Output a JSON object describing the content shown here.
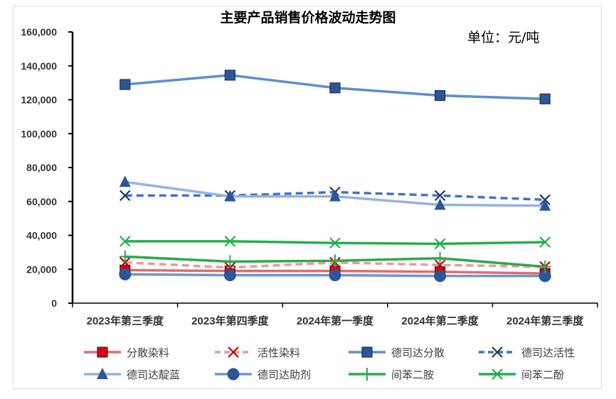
{
  "chart_data": {
    "type": "line",
    "title": "主要产品销售价格波动走势图",
    "unit_label": "单位：元/吨",
    "categories": [
      "2023年第三季度",
      "2023年第四季度",
      "2024年第一季度",
      "2024年第二季度",
      "2024年第三季度"
    ],
    "ylim": [
      0,
      160000
    ],
    "yticks": [
      "0",
      "20,000",
      "40,000",
      "60,000",
      "80,000",
      "100,000",
      "120,000",
      "140,000",
      "160,000"
    ],
    "grid": false,
    "legend_position": "bottom",
    "series": [
      {
        "name": "分散染料",
        "values": [
          19500,
          19000,
          19000,
          18500,
          17500
        ],
        "color": "#e06c6c",
        "marker": "square",
        "marker_color": "#e60000",
        "dash": "solid"
      },
      {
        "name": "活性染料",
        "values": [
          24000,
          21000,
          24000,
          22500,
          21500
        ],
        "color": "#e99a9a",
        "marker": "x",
        "marker_color": "#c00000",
        "dash": "dashed"
      },
      {
        "name": "德司达分散",
        "values": [
          129000,
          134500,
          127000,
          122500,
          120500
        ],
        "color": "#5b8fd0",
        "marker": "square",
        "marker_color": "#2e5597",
        "dash": "solid"
      },
      {
        "name": "德司达活性",
        "values": [
          63500,
          63500,
          65500,
          63500,
          61000
        ],
        "color": "#4472c4",
        "marker": "x",
        "marker_color": "#1f3864",
        "dash": "dashed"
      },
      {
        "name": "德司达靛蓝",
        "values": [
          71500,
          63000,
          63000,
          58000,
          57500
        ],
        "color": "#95b3e0",
        "marker": "triangle",
        "marker_color": "#2e5597",
        "dash": "solid"
      },
      {
        "name": "德司达助剂",
        "values": [
          17000,
          16500,
          16500,
          16000,
          16000
        ],
        "color": "#6a97d6",
        "marker": "circle",
        "marker_color": "#2e5597",
        "dash": "solid"
      },
      {
        "name": "间苯二胺",
        "values": [
          27500,
          24500,
          25000,
          26500,
          21500
        ],
        "color": "#2ca94f",
        "marker": "plus",
        "marker_color": "#2ca94f",
        "dash": "solid"
      },
      {
        "name": "间苯二酚",
        "values": [
          36500,
          36500,
          35500,
          35000,
          36000
        ],
        "color": "#1fb04a",
        "marker": "x",
        "marker_color": "#1fb04a",
        "dash": "solid"
      }
    ]
  }
}
